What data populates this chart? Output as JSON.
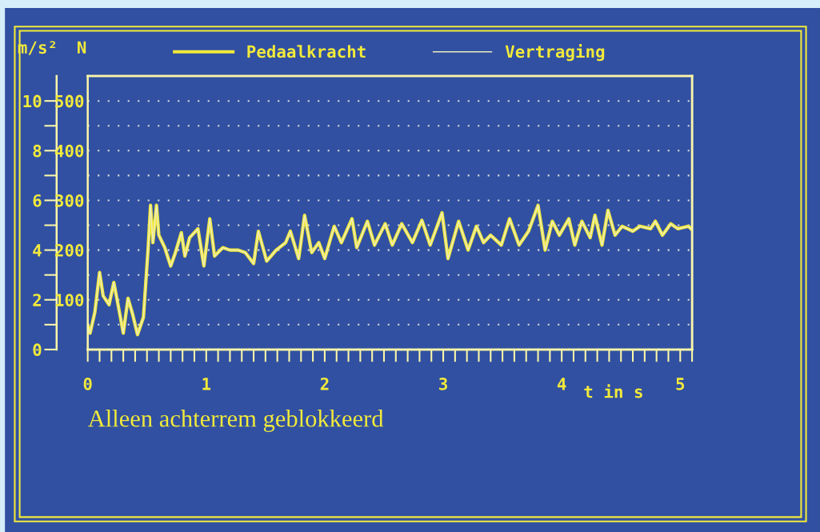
{
  "chart_data": {
    "type": "line",
    "x": [
      0,
      0.02,
      0.06,
      0.1,
      0.13,
      0.18,
      0.22,
      0.26,
      0.3,
      0.34,
      0.38,
      0.42,
      0.47,
      0.49,
      0.51,
      0.53,
      0.55,
      0.58,
      0.6,
      0.65,
      0.7,
      0.74,
      0.79,
      0.82,
      0.86,
      0.93,
      0.98,
      1.03,
      1.07,
      1.14,
      1.2,
      1.27,
      1.33,
      1.4,
      1.44,
      1.51,
      1.59,
      1.67,
      1.71,
      1.78,
      1.83,
      1.89,
      1.95,
      2.0,
      2.08,
      2.14,
      2.23,
      2.27,
      2.36,
      2.42,
      2.51,
      2.57,
      2.65,
      2.74,
      2.82,
      2.89,
      2.99,
      3.04,
      3.13,
      3.21,
      3.28,
      3.34,
      3.4,
      3.49,
      3.56,
      3.64,
      3.72,
      3.8,
      3.86,
      3.92,
      3.98,
      4.06,
      4.11,
      4.17,
      4.24,
      4.28,
      4.34,
      4.39,
      4.45,
      4.51,
      4.6,
      4.66,
      4.75,
      4.79,
      4.85,
      4.92,
      4.98,
      5.07,
      5.09
    ],
    "series": [
      {
        "name": "Pedaalkracht",
        "color": "#f2ea3a",
        "axis": "y2",
        "values": [
          48,
          33,
          75,
          155,
          108,
          90,
          135,
          85,
          33,
          103,
          70,
          30,
          65,
          135,
          205,
          290,
          215,
          290,
          230,
          205,
          168,
          195,
          235,
          188,
          225,
          243,
          168,
          263,
          188,
          205,
          200,
          200,
          195,
          173,
          238,
          178,
          200,
          215,
          238,
          183,
          270,
          195,
          215,
          183,
          248,
          215,
          263,
          205,
          258,
          210,
          253,
          210,
          253,
          215,
          260,
          210,
          275,
          183,
          258,
          200,
          248,
          215,
          230,
          210,
          263,
          210,
          238,
          290,
          200,
          258,
          230,
          263,
          210,
          258,
          225,
          270,
          210,
          280,
          230,
          248,
          238,
          248,
          243,
          258,
          230,
          253,
          243,
          248,
          243
        ]
      },
      {
        "name": "Vertraging",
        "color": "#ecebc2",
        "values": [
          0.97,
          0.65,
          1.5,
          3.1,
          2.15,
          1.8,
          2.7,
          1.7,
          0.65,
          2.05,
          1.4,
          0.6,
          1.3,
          2.7,
          4.1,
          5.8,
          4.3,
          5.8,
          4.6,
          4.1,
          3.35,
          3.9,
          4.7,
          3.75,
          4.5,
          4.85,
          3.35,
          5.25,
          3.75,
          4.1,
          4.0,
          4.0,
          3.9,
          3.45,
          4.75,
          3.55,
          4.0,
          4.3,
          4.75,
          3.65,
          5.4,
          3.9,
          4.3,
          3.65,
          4.95,
          4.3,
          5.25,
          4.1,
          5.15,
          4.2,
          5.05,
          4.2,
          5.05,
          4.3,
          5.2,
          4.2,
          5.5,
          3.65,
          5.15,
          4.0,
          4.95,
          4.3,
          4.6,
          4.2,
          5.25,
          4.2,
          4.75,
          5.8,
          4.0,
          5.15,
          4.6,
          5.25,
          4.2,
          5.15,
          4.5,
          5.4,
          4.2,
          5.6,
          4.6,
          4.95,
          4.75,
          4.95,
          4.85,
          5.15,
          4.6,
          5.05,
          4.85,
          4.95,
          4.85
        ]
      }
    ],
    "xlim": [
      0,
      5.1
    ],
    "xticks": [
      0,
      {
        "value": 0.1,
        "label": null
      },
      {
        "value": 0.2,
        "label": null
      },
      {
        "value": 0.3,
        "label": null
      },
      {
        "value": 0.4,
        "label": null
      },
      {
        "value": 0.5,
        "label": null
      },
      {
        "value": 0.6,
        "label": null
      },
      {
        "value": 0.7,
        "label": null
      },
      {
        "value": 0.8,
        "label": null
      },
      {
        "value": 0.9,
        "label": null
      },
      1,
      {
        "value": 1.1,
        "label": null
      },
      {
        "value": 1.2,
        "label": null
      },
      {
        "value": 1.3,
        "label": null
      },
      {
        "value": 1.4,
        "label": null
      },
      {
        "value": 1.5,
        "label": null
      },
      {
        "value": 1.6,
        "label": null
      },
      {
        "value": 1.7,
        "label": null
      },
      {
        "value": 1.8,
        "label": null
      },
      {
        "value": 1.9,
        "label": null
      },
      2,
      {
        "value": 2.1,
        "label": null
      },
      {
        "value": 2.2,
        "label": null
      },
      {
        "value": 2.3,
        "label": null
      },
      {
        "value": 2.4,
        "label": null
      },
      {
        "value": 2.5,
        "label": null
      },
      {
        "value": 2.6,
        "label": null
      },
      {
        "value": 2.7,
        "label": null
      },
      {
        "value": 2.8,
        "label": null
      },
      {
        "value": 2.9,
        "label": null
      },
      3,
      {
        "value": 3.1,
        "label": null
      },
      {
        "value": 3.2,
        "label": null
      },
      {
        "value": 3.3,
        "label": null
      },
      {
        "value": 3.4,
        "label": null
      },
      {
        "value": 3.5,
        "label": null
      },
      {
        "value": 3.6,
        "label": null
      },
      {
        "value": 3.7,
        "label": null
      },
      {
        "value": 3.8,
        "label": null
      },
      {
        "value": 3.9,
        "label": null
      },
      4,
      {
        "value": 4.1,
        "label": null
      },
      {
        "value": 4.2,
        "label": null
      },
      {
        "value": 4.3,
        "label": null
      },
      {
        "value": 4.4,
        "label": null
      },
      {
        "value": 4.5,
        "label": null
      },
      {
        "value": 4.6,
        "label": null
      },
      {
        "value": 4.7,
        "label": null
      },
      {
        "value": 4.8,
        "label": null
      },
      {
        "value": 4.9,
        "label": null
      },
      5,
      {
        "value": 5.1,
        "label": null
      }
    ],
    "ylim": [
      0,
      11
    ],
    "yticks": [
      0,
      {
        "value": 1,
        "label": null
      },
      2,
      {
        "value": 3,
        "label": null
      },
      4,
      {
        "value": 5,
        "label": null
      },
      6,
      {
        "value": 7,
        "label": null
      },
      8,
      {
        "value": 9,
        "label": null
      },
      10
    ],
    "y2lim": [
      0,
      550
    ],
    "y2ticks": [
      100,
      200,
      300,
      400,
      500
    ],
    "xlabel": "t in s",
    "ylabel": "m/s²",
    "y2label": "N",
    "grid": "y",
    "legend": "top",
    "annotations": [
      "Alleen achterrem geblokkeerd"
    ]
  }
}
